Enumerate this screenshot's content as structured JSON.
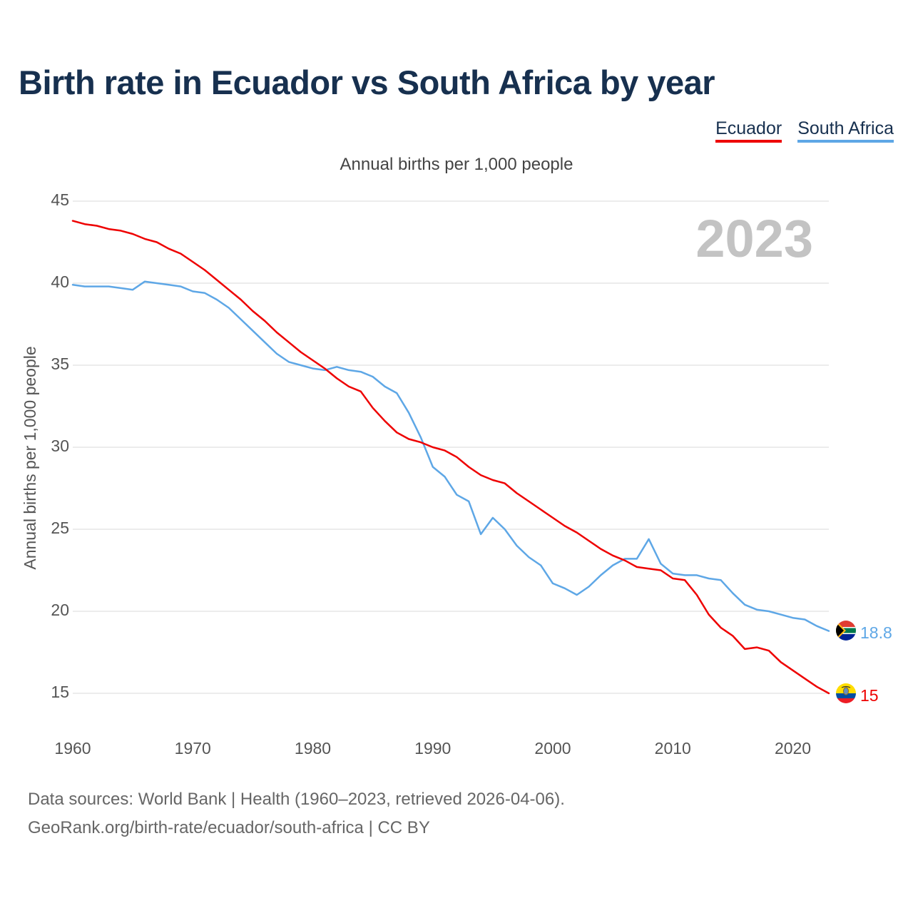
{
  "title": "Birth rate in Ecuador vs South Africa by year",
  "subtitle": "Annual births per 1,000 people",
  "legend": [
    {
      "label": "Ecuador",
      "color": "#ee0000"
    },
    {
      "label": "South Africa",
      "color": "#5ea7e6"
    }
  ],
  "footer": {
    "line1": "Data sources: World Bank | Health (1960–2023, retrieved 2026-04-06).",
    "line2": "GeoRank.org/birth-rate/ecuador/south-africa | CC BY"
  },
  "chart_data": {
    "type": "line",
    "title": "Birth rate in Ecuador vs South Africa by year",
    "xlabel": "",
    "ylabel": "Annual births per 1,000 people",
    "xlim": [
      1960,
      2023
    ],
    "ylim": [
      15,
      45
    ],
    "yticks": [
      15,
      20,
      25,
      30,
      35,
      40,
      45
    ],
    "xticks": [
      1960,
      1970,
      1980,
      1990,
      2000,
      2010,
      2020
    ],
    "grid": true,
    "current_year_label": "2023",
    "x": [
      1960,
      1961,
      1962,
      1963,
      1964,
      1965,
      1966,
      1967,
      1968,
      1969,
      1970,
      1971,
      1972,
      1973,
      1974,
      1975,
      1976,
      1977,
      1978,
      1979,
      1980,
      1981,
      1982,
      1983,
      1984,
      1985,
      1986,
      1987,
      1988,
      1989,
      1990,
      1991,
      1992,
      1993,
      1994,
      1995,
      1996,
      1997,
      1998,
      1999,
      2000,
      2001,
      2002,
      2003,
      2004,
      2005,
      2006,
      2007,
      2008,
      2009,
      2010,
      2011,
      2012,
      2013,
      2014,
      2015,
      2016,
      2017,
      2018,
      2019,
      2020,
      2021,
      2022,
      2023
    ],
    "series": [
      {
        "name": "Ecuador",
        "color": "#ee0000",
        "end_label": "15",
        "values": [
          43.8,
          43.6,
          43.5,
          43.3,
          43.2,
          43.0,
          42.7,
          42.5,
          42.1,
          41.8,
          41.3,
          40.8,
          40.2,
          39.6,
          39.0,
          38.3,
          37.7,
          37.0,
          36.4,
          35.8,
          35.3,
          34.8,
          34.2,
          33.7,
          33.4,
          32.4,
          31.6,
          30.9,
          30.5,
          30.3,
          30.0,
          29.8,
          29.4,
          28.8,
          28.3,
          28.0,
          27.8,
          27.2,
          26.7,
          26.2,
          25.7,
          25.2,
          24.8,
          24.3,
          23.8,
          23.4,
          23.1,
          22.7,
          22.6,
          22.5,
          22.0,
          21.9,
          21.0,
          19.8,
          19.0,
          18.5,
          17.7,
          17.8,
          17.6,
          16.9,
          16.4,
          15.9,
          15.4,
          15.0
        ]
      },
      {
        "name": "South Africa",
        "color": "#5ea7e6",
        "end_label": "18.8",
        "values": [
          39.9,
          39.8,
          39.8,
          39.8,
          39.7,
          39.6,
          40.1,
          40.0,
          39.9,
          39.8,
          39.5,
          39.4,
          39.0,
          38.5,
          37.8,
          37.1,
          36.4,
          35.7,
          35.2,
          35.0,
          34.8,
          34.7,
          34.9,
          34.7,
          34.6,
          34.3,
          33.7,
          33.3,
          32.1,
          30.6,
          28.8,
          28.2,
          27.1,
          26.7,
          24.7,
          25.7,
          25.0,
          24.0,
          23.3,
          22.8,
          21.7,
          21.4,
          21.0,
          21.5,
          22.2,
          22.8,
          23.2,
          23.2,
          24.4,
          22.9,
          22.3,
          22.2,
          22.2,
          22.0,
          21.9,
          21.1,
          20.4,
          20.1,
          20.0,
          19.8,
          19.6,
          19.5,
          19.1,
          18.8
        ]
      }
    ]
  }
}
